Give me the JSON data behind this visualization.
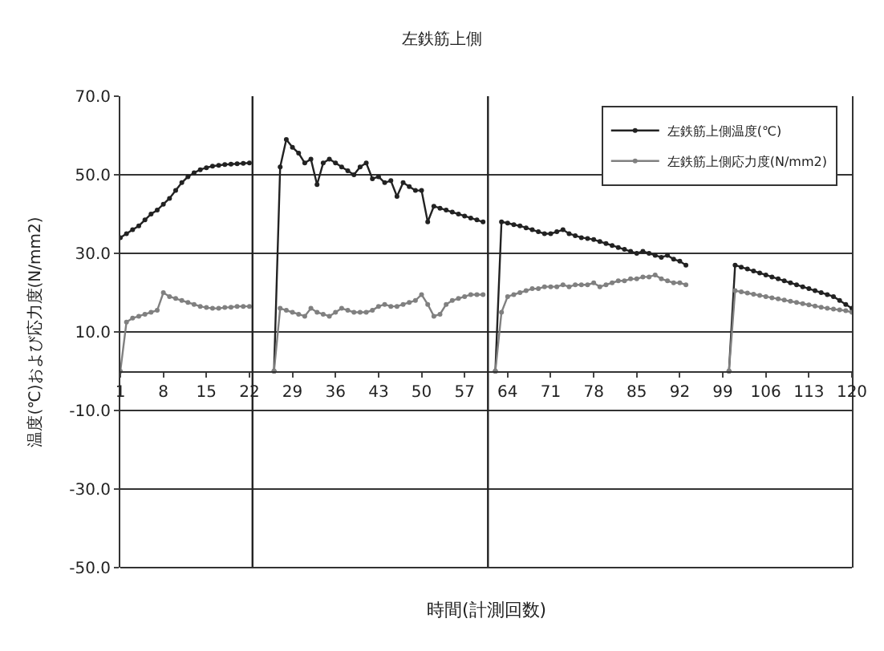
{
  "chart_data": {
    "type": "line",
    "title": "左鉄筋上側",
    "xlabel": "時間(計測回数)",
    "ylabel": "温度(℃)および応力度(N/mm2)",
    "x": [
      1,
      2,
      3,
      4,
      5,
      6,
      7,
      8,
      9,
      10,
      11,
      12,
      13,
      14,
      15,
      16,
      17,
      18,
      19,
      20,
      21,
      22,
      23,
      24,
      25,
      26,
      27,
      28,
      29,
      30,
      31,
      32,
      33,
      34,
      35,
      36,
      37,
      38,
      39,
      40,
      41,
      42,
      43,
      44,
      45,
      46,
      47,
      48,
      49,
      50,
      51,
      52,
      53,
      54,
      55,
      56,
      57,
      58,
      59,
      60,
      61,
      62,
      63,
      64,
      65,
      66,
      67,
      68,
      69,
      70,
      71,
      72,
      73,
      74,
      75,
      76,
      77,
      78,
      79,
      80,
      81,
      82,
      83,
      84,
      85,
      86,
      87,
      88,
      89,
      90,
      91,
      92,
      93,
      94,
      95,
      96,
      97,
      98,
      99,
      100,
      101,
      102,
      103,
      104,
      105,
      106,
      107,
      108,
      109,
      110,
      111,
      112,
      113,
      114,
      115,
      116,
      117,
      118,
      119,
      120
    ],
    "series": [
      {
        "name": "左鉄筋上側温度(℃)",
        "color": "#222222",
        "values": [
          34,
          35,
          36,
          37,
          38.5,
          40,
          41,
          42.5,
          44,
          46,
          48,
          49.5,
          50.5,
          51.3,
          51.8,
          52.2,
          52.4,
          52.6,
          52.7,
          52.8,
          52.9,
          53,
          null,
          null,
          null,
          0,
          52,
          59,
          57,
          55.5,
          53,
          54,
          47.5,
          53,
          54,
          53,
          52,
          51,
          50,
          52,
          53,
          49,
          49.5,
          48,
          48.5,
          44.5,
          48,
          47,
          46,
          46,
          38,
          42,
          41.5,
          41,
          40.5,
          40,
          39.5,
          39,
          38.5,
          38,
          null,
          0,
          38,
          37.7,
          37.3,
          37,
          36.5,
          36,
          35.5,
          35,
          35,
          35.5,
          36,
          35,
          34.5,
          34,
          33.8,
          33.5,
          33,
          32.5,
          32,
          31.5,
          31,
          30.5,
          30,
          30.5,
          30,
          29.5,
          29,
          29.5,
          28.5,
          28,
          27,
          null,
          null,
          null,
          null,
          null,
          null,
          0,
          27,
          26.5,
          26,
          25.5,
          25,
          24.5,
          24,
          23.5,
          23,
          22.5,
          22,
          21.5,
          21,
          20.5,
          20,
          19.5,
          19,
          18,
          17,
          16
        ]
      },
      {
        "name": "左鉄筋上側応力度(N/mm2)",
        "color": "#808080",
        "values": [
          0,
          12.5,
          13.5,
          14,
          14.5,
          15,
          15.5,
          20,
          19,
          18.5,
          18,
          17.5,
          17,
          16.5,
          16.2,
          16,
          16,
          16.2,
          16.3,
          16.5,
          16.5,
          16.5,
          null,
          null,
          null,
          0,
          16,
          15.5,
          15,
          14.5,
          14,
          16,
          15,
          14.5,
          14,
          15,
          16,
          15.5,
          15,
          15,
          15,
          15.5,
          16.5,
          17,
          16.5,
          16.5,
          17,
          17.5,
          18,
          19.5,
          17,
          14,
          14.5,
          17,
          18,
          18.5,
          19,
          19.5,
          19.5,
          19.5,
          null,
          0,
          15,
          19,
          19.5,
          20,
          20.5,
          21,
          21,
          21.5,
          21.5,
          21.5,
          22,
          21.5,
          22,
          22,
          22,
          22.5,
          21.5,
          22,
          22.5,
          23,
          23,
          23.5,
          23.5,
          24,
          24,
          24.5,
          23.5,
          23,
          22.5,
          22.5,
          22,
          null,
          null,
          null,
          null,
          null,
          null,
          0,
          20.5,
          20.2,
          19.9,
          19.6,
          19.3,
          19,
          18.7,
          18.4,
          18.1,
          17.8,
          17.5,
          17.2,
          16.9,
          16.6,
          16.3,
          16,
          15.8,
          15.6,
          15.4,
          15
        ]
      }
    ],
    "xlim": [
      1,
      120
    ],
    "xticks": [
      1,
      8,
      15,
      22,
      29,
      36,
      43,
      50,
      57,
      64,
      71,
      78,
      85,
      92,
      99,
      106,
      113,
      120
    ],
    "ylim": [
      -50,
      70
    ],
    "yticks": [
      {
        "value": 70,
        "label": "70.0"
      },
      {
        "value": 50,
        "label": "50.0"
      },
      {
        "value": 30,
        "label": "30.0"
      },
      {
        "value": 10,
        "label": "10.0"
      },
      {
        "value": -10,
        "label": "-10.0"
      },
      {
        "value": -30,
        "label": "-30.0"
      },
      {
        "value": -50,
        "label": "-50.0"
      }
    ],
    "ref_lines": [
      {
        "axis": "x",
        "value": 22.5,
        "color": "#222222"
      },
      {
        "axis": "x",
        "value": 60.8,
        "color": "#222222"
      }
    ],
    "grid": "y",
    "legend": "top right",
    "marker": "circle",
    "line_style": "solid"
  }
}
